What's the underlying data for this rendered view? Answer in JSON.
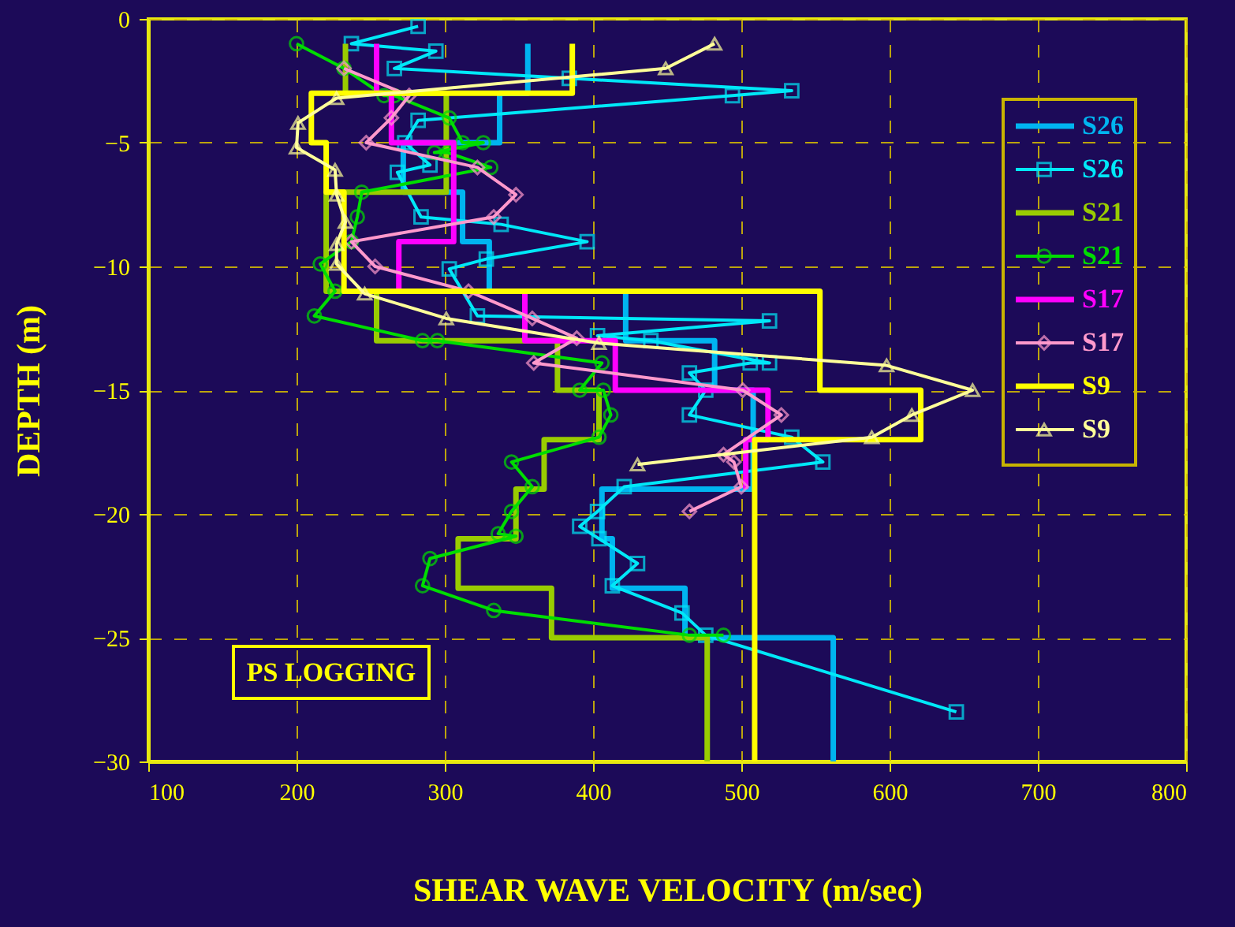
{
  "chart_data": {
    "type": "line",
    "xlabel": "SHEAR WAVE VELOCITY (m/sec)",
    "ylabel": "DEPTH (m)",
    "xlim": [
      100,
      800
    ],
    "ylim": [
      -30,
      0
    ],
    "xticks": [
      100,
      200,
      300,
      400,
      500,
      600,
      700,
      800
    ],
    "yticks": [
      0,
      -5,
      -10,
      -15,
      -20,
      -25,
      -30
    ],
    "grid": true,
    "legend": "top right",
    "annotations": [
      "PS LOGGING"
    ],
    "series": [
      {
        "name": "S26",
        "color": "#00b4f0",
        "marker": "none",
        "x": [
          356,
          356,
          337,
          337,
          272,
          272,
          312,
          312,
          330,
          330,
          422,
          422,
          482,
          482,
          508,
          508,
          406,
          406,
          413,
          413,
          462,
          462,
          562,
          562
        ],
        "values": [
          -1,
          -3,
          -3,
          -5,
          -5,
          -7,
          -7,
          -9,
          -9,
          -11,
          -11,
          -13,
          -13,
          -15,
          -15,
          -19,
          -19,
          -21,
          -21,
          -23,
          -23,
          -25,
          -25,
          -30
        ]
      },
      {
        "name": "S26",
        "color": "#00e8f8",
        "marker": "square",
        "x": [
          282,
          237,
          294,
          266,
          384,
          534,
          494,
          282,
          273,
          290,
          268,
          284,
          338,
          396,
          328,
          303,
          322,
          519,
          403,
          439,
          519,
          506,
          465,
          476,
          465,
          534,
          555,
          421,
          403,
          391,
          404,
          430,
          413,
          460,
          476,
          645
        ],
        "values": [
          -0.3,
          -1.0,
          -1.3,
          -2.0,
          -2.4,
          -2.9,
          -3.1,
          -4.1,
          -5.0,
          -5.9,
          -6.2,
          -8.0,
          -8.3,
          -9.0,
          -9.7,
          -10.1,
          -12.0,
          -12.2,
          -12.8,
          -13.0,
          -13.9,
          -13.9,
          -14.3,
          -15.0,
          -16.0,
          -16.9,
          -17.9,
          -18.9,
          -19.9,
          -20.5,
          -21.0,
          -22.0,
          -22.9,
          -24.0,
          -24.9,
          -28.0
        ]
      },
      {
        "name": "S21",
        "color": "#99cc00",
        "marker": "none",
        "x": [
          233,
          233,
          301,
          301,
          220,
          220,
          254,
          254,
          376,
          376,
          404,
          404,
          367,
          367,
          348,
          348,
          309,
          309,
          372,
          372,
          477,
          477
        ],
        "values": [
          -1,
          -3,
          -3,
          -7,
          -7,
          -11,
          -11,
          -13,
          -13,
          -15,
          -15,
          -17,
          -17,
          -19,
          -19,
          -21,
          -21,
          -23,
          -23,
          -25,
          -25,
          -30
        ]
      },
      {
        "name": "S21",
        "color": "#00dd00",
        "marker": "circle",
        "x": [
          200,
          232,
          259,
          266,
          303,
          312,
          326,
          293,
          302,
          331,
          244,
          241,
          237,
          216,
          226,
          212,
          285,
          295,
          406,
          391,
          407,
          412,
          404,
          345,
          359,
          345,
          336,
          348,
          290,
          285,
          333,
          465,
          488
        ],
        "values": [
          -1.0,
          -2.0,
          -3.1,
          -3.1,
          -4.0,
          -5.0,
          -5.0,
          -5.4,
          -5.4,
          -6.0,
          -7.0,
          -8.0,
          -9.0,
          -9.9,
          -11.0,
          -12.0,
          -13.0,
          -13.0,
          -13.9,
          -15.0,
          -15.0,
          -16.0,
          -16.9,
          -17.9,
          -18.9,
          -19.9,
          -20.8,
          -20.9,
          -21.8,
          -22.9,
          -23.9,
          -24.9,
          -24.9
        ]
      },
      {
        "name": "S17",
        "color": "#ff00ff",
        "marker": "none",
        "x": [
          254,
          254,
          264,
          264,
          306,
          306,
          269,
          269,
          354,
          354,
          415,
          415,
          518,
          518,
          503,
          503
        ],
        "values": [
          -1,
          -3,
          -3,
          -5,
          -5,
          -9,
          -9,
          -11,
          -11,
          -13,
          -13,
          -15,
          -15,
          -17,
          -17,
          -19
        ]
      },
      {
        "name": "S17",
        "color": "#ff99cc",
        "marker": "diamond",
        "x": [
          232,
          276,
          264,
          247,
          322,
          348,
          333,
          237,
          253,
          316,
          359,
          389,
          360,
          501,
          527,
          488,
          495,
          500,
          465
        ],
        "values": [
          -2.0,
          -3.1,
          -4.0,
          -5.0,
          -6.0,
          -7.1,
          -8.0,
          -9.0,
          -10.0,
          -11.0,
          -12.1,
          -12.9,
          -13.9,
          -15.0,
          -16.0,
          -17.6,
          -17.9,
          -18.9,
          -19.9
        ]
      },
      {
        "name": "S9",
        "color": "#ffff00",
        "marker": "none",
        "x": [
          386,
          386,
          210,
          210,
          220,
          220,
          232,
          232,
          553,
          553,
          621,
          621,
          509,
          509
        ],
        "values": [
          -1,
          -3,
          -3,
          -5,
          -5,
          -7,
          -7,
          -11,
          -11,
          -15,
          -15,
          -17,
          -17,
          -30
        ]
      },
      {
        "name": "S9",
        "color": "#ffff99",
        "marker": "triangle",
        "x": [
          482,
          449,
          227,
          201,
          200,
          226,
          227,
          233,
          227,
          227,
          246,
          301,
          404,
          598,
          656,
          615,
          588,
          430
        ],
        "values": [
          -1.0,
          -2.0,
          -3.2,
          -4.2,
          -5.2,
          -6.1,
          -7.1,
          -8.2,
          -9.1,
          -9.9,
          -11.1,
          -12.1,
          -13.1,
          -14.0,
          -15.0,
          -16.0,
          -16.9,
          -18.0
        ]
      }
    ]
  }
}
